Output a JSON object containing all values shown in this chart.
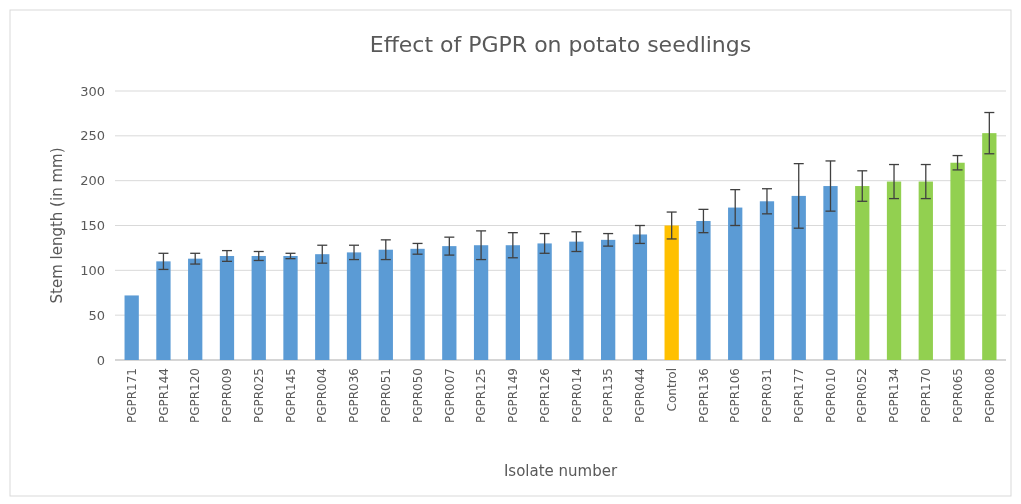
{
  "chart_data": {
    "type": "bar",
    "title": "Effect of PGPR on potato seedlings",
    "xlabel": "Isolate number",
    "ylabel": "Stem length (in mm)",
    "categories": [
      "PGPR171",
      "PGPR144",
      "PGPR120",
      "PGPR009",
      "PGPR025",
      "PGPR145",
      "PGPR004",
      "PGPR036",
      "PGPR051",
      "PGPR050",
      "PGPR007",
      "PGPR125",
      "PGPR149",
      "PGPR126",
      "PGPR014",
      "PGPR135",
      "PGPR044",
      "Control",
      "PGPR136",
      "PGPR106",
      "PGPR031",
      "PGPR177",
      "PGPR010",
      "PGPR052",
      "PGPR134",
      "PGPR170",
      "PGPR065",
      "PGPR008"
    ],
    "values": [
      72,
      110,
      113,
      116,
      116,
      116,
      118,
      120,
      123,
      124,
      127,
      128,
      128,
      130,
      132,
      134,
      140,
      150,
      155,
      170,
      177,
      183,
      194,
      194,
      199,
      199,
      220,
      253
    ],
    "errors": [
      null,
      9,
      6,
      6,
      5,
      3,
      10,
      8,
      11,
      6,
      10,
      16,
      14,
      11,
      11,
      7,
      10,
      15,
      13,
      20,
      14,
      36,
      28,
      17,
      19,
      19,
      8,
      23
    ],
    "colors": [
      "#5b9bd5",
      "#5b9bd5",
      "#5b9bd5",
      "#5b9bd5",
      "#5b9bd5",
      "#5b9bd5",
      "#5b9bd5",
      "#5b9bd5",
      "#5b9bd5",
      "#5b9bd5",
      "#5b9bd5",
      "#5b9bd5",
      "#5b9bd5",
      "#5b9bd5",
      "#5b9bd5",
      "#5b9bd5",
      "#5b9bd5",
      "#ffc000",
      "#5b9bd5",
      "#5b9bd5",
      "#5b9bd5",
      "#5b9bd5",
      "#5b9bd5",
      "#92d050",
      "#92d050",
      "#92d050",
      "#92d050",
      "#92d050"
    ],
    "ylim": [
      0,
      300
    ],
    "yticks": [
      0,
      50,
      100,
      150,
      200,
      250,
      300
    ],
    "grid": "y"
  }
}
